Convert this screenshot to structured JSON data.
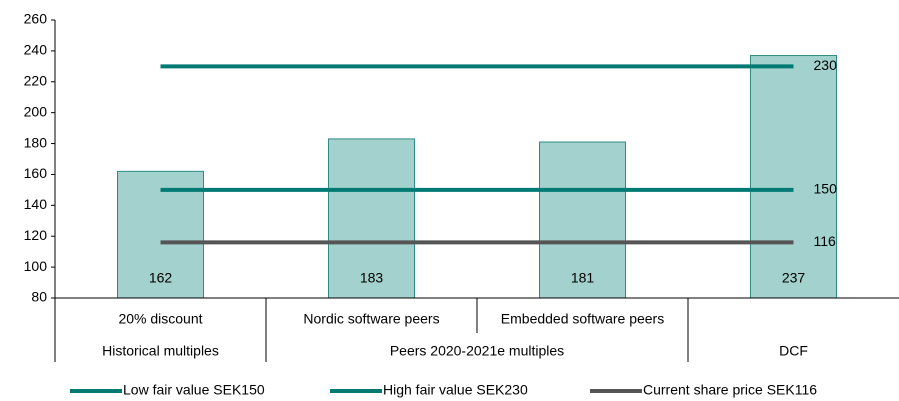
{
  "chart_data": {
    "type": "bar",
    "categories": [
      "20% discount",
      "Nordic software peers",
      "Embedded software peers",
      null
    ],
    "groups": [
      "Historical multiples",
      "Peers 2020-2021e multiples",
      "DCF"
    ],
    "values": [
      162,
      183,
      181,
      237
    ],
    "color": "#a3d1cd",
    "edge_color": "#2e8c85",
    "lines": [
      {
        "name": "Low fair value SEK150",
        "value": 150,
        "color": "#007a73"
      },
      {
        "name": "High fair value SEK230",
        "value": 230,
        "color": "#007a73"
      },
      {
        "name": "Current share price SEK116",
        "value": 116,
        "color": "#555555"
      }
    ],
    "ylim": [
      80,
      260
    ],
    "yticks": [
      80,
      100,
      120,
      140,
      160,
      180,
      200,
      220,
      240,
      260
    ],
    "legend": "bottom"
  }
}
